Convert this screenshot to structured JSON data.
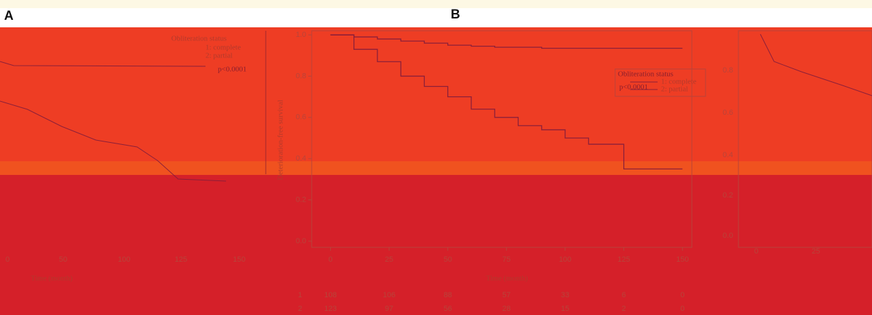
{
  "panels": {
    "a_label": "A",
    "b_label": "B"
  },
  "panel_a": {
    "legend_title": "Obliteration status",
    "legend_items": [
      "1: complete",
      "2: partial"
    ],
    "p_value": "p<0.0001",
    "xtick_labels": [
      "0",
      "50",
      "100",
      "125",
      "150"
    ],
    "xlabel": "Time (month)"
  },
  "panel_b_right": {
    "ytick_labels": [
      "0.8",
      "0.6",
      "0.4",
      "0.2",
      "0.0"
    ],
    "xtick_labels": [
      "0",
      "25"
    ]
  },
  "chart_data": {
    "type": "line",
    "ylabel": "Deterioration-free survival",
    "xlabel": "Time (month)",
    "legend_title": "Obliteration status",
    "annotation": "p<0.0001",
    "x": [
      0,
      10,
      20,
      30,
      40,
      50,
      60,
      70,
      80,
      90,
      100,
      110,
      120,
      125,
      150
    ],
    "series": [
      {
        "name": "1: complete",
        "color": "#8a1f3a",
        "values": [
          1.0,
          0.99,
          0.98,
          0.97,
          0.96,
          0.95,
          0.945,
          0.94,
          0.94,
          0.935,
          0.935,
          0.935,
          0.935,
          0.935,
          0.935
        ]
      },
      {
        "name": "2: partial",
        "color": "#8a1f3a",
        "values": [
          1.0,
          0.93,
          0.87,
          0.8,
          0.75,
          0.7,
          0.64,
          0.6,
          0.56,
          0.54,
          0.5,
          0.47,
          0.47,
          0.35,
          0.35
        ]
      }
    ],
    "xlim": [
      -8,
      154
    ],
    "ylim": [
      -0.03,
      1.02
    ],
    "xticks": [
      0,
      25,
      50,
      75,
      100,
      125,
      150
    ],
    "yticks": [
      {
        "value": 0,
        "label": "0.0"
      },
      {
        "value": 0.2,
        "label": "0.2"
      },
      {
        "value": 0.4,
        "label": "0.4"
      },
      {
        "value": 0.6,
        "label": "0.6"
      },
      {
        "value": 0.8,
        "label": "0.8"
      },
      {
        "value": 1,
        "label": "1.0"
      }
    ],
    "at_risk": [
      [
        "1",
        "108",
        "106",
        "88",
        "57",
        "33",
        "6",
        "0"
      ],
      [
        "2",
        "123",
        "97",
        "56",
        "28",
        "15",
        "2",
        "0"
      ]
    ]
  }
}
